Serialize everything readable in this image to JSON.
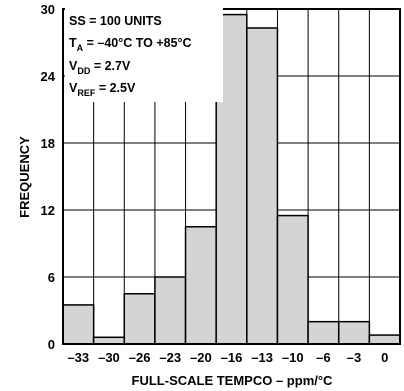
{
  "chart_data": {
    "type": "bar",
    "xlabel": "FULL-SCALE TEMPCO – ppm/°C",
    "ylabel": "FREQUENCY",
    "ylim": [
      0,
      30
    ],
    "yticks": [
      "0",
      "6",
      "12",
      "18",
      "24",
      "30"
    ],
    "xticks": [
      "–33",
      "–30",
      "–26",
      "–23",
      "–20",
      "–16",
      "–13",
      "–10",
      "–6",
      "–3",
      "0"
    ],
    "values": [
      3.5,
      0.6,
      4.5,
      6.0,
      10.5,
      29.5,
      28.3,
      11.5,
      2.0,
      2.0,
      0.8
    ],
    "grid": true,
    "bar_color": "#d4d4d4",
    "annotations": {
      "ss": "SS = 100 UNITS",
      "ta_main": "T",
      "ta_sub": "A",
      "ta_rest": " = –40°C TO +85°C",
      "vdd_main": "V",
      "vdd_sub": "DD",
      "vdd_rest": " = 2.7V",
      "vref_main": "V",
      "vref_sub": "REF",
      "vref_rest": " = 2.5V"
    }
  }
}
